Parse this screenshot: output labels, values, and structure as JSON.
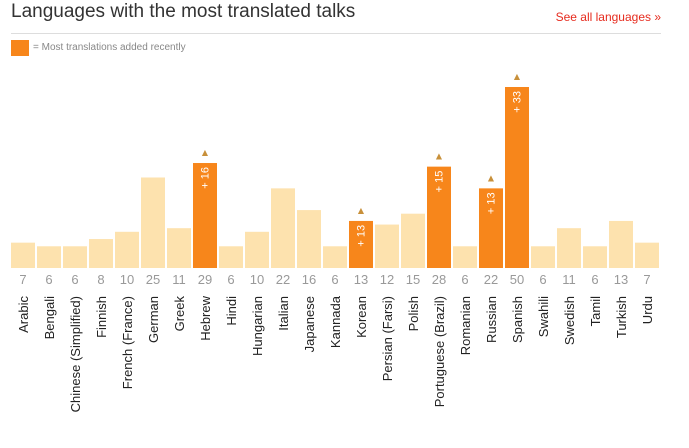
{
  "header": {
    "title": "Languages with the most translated talks",
    "see_all_label": "See all languages »"
  },
  "legend": {
    "label": "= Most translations added recently"
  },
  "colors": {
    "bar": "#fde2ae",
    "highlight_bar": "#f7861b",
    "arrow": "#c8903a",
    "count_text": "#999999",
    "label_text": "#222222",
    "link": "#e62b1e"
  },
  "chart_data": {
    "type": "bar",
    "categories": [
      "Arabic",
      "Bengali",
      "Chinese (Simplified)",
      "Finnish",
      "French (France)",
      "German",
      "Greek",
      "Hebrew",
      "Hindi",
      "Hungarian",
      "Italian",
      "Japanese",
      "Kannada",
      "Korean",
      "Persian (Farsi)",
      "Polish",
      "Portuguese (Brazil)",
      "Romanian",
      "Russian",
      "Spanish",
      "Swahili",
      "Swedish",
      "Tamil",
      "Turkish",
      "Urdu"
    ],
    "values": [
      7,
      6,
      6,
      8,
      10,
      25,
      11,
      29,
      6,
      10,
      22,
      16,
      6,
      13,
      12,
      15,
      28,
      6,
      22,
      50,
      6,
      11,
      6,
      13,
      7
    ],
    "recent_added": [
      null,
      null,
      null,
      null,
      null,
      null,
      null,
      "+ 16",
      null,
      null,
      null,
      null,
      null,
      "+ 13",
      null,
      null,
      "+ 15",
      null,
      "+ 13",
      "+ 33",
      null,
      null,
      null,
      null,
      null
    ],
    "highlight_marker": "▲",
    "title": "Languages with the most translated talks",
    "ylim": [
      0,
      50
    ]
  }
}
